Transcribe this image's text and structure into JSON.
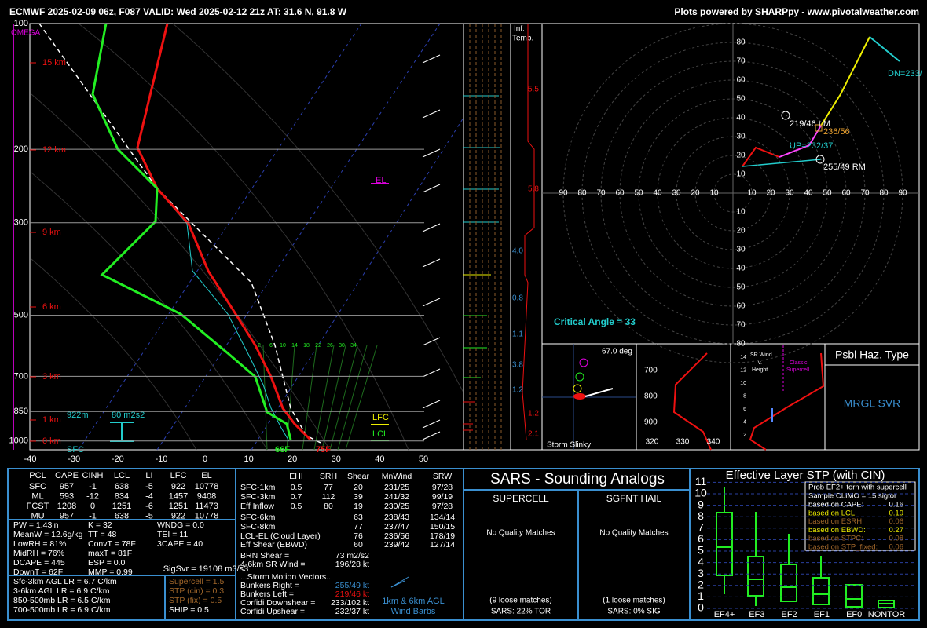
{
  "header": {
    "title": "ECMWF 2025-02-09 06z, F087  VALID: Wed 2025-02-12 21z  AT: 31.6 N, 91.8 W",
    "credit": "Plots powered by SHARPpy - www.pivotalweather.com"
  },
  "skewt": {
    "omega": "OMEGA",
    "pressures": [
      100,
      200,
      300,
      500,
      700,
      850,
      1000
    ],
    "heights": [
      "15 km",
      "12 km",
      "9 km",
      "6 km",
      "3 km",
      "1 km",
      "0 km"
    ],
    "temps": [
      -40,
      -30,
      -20,
      -10,
      0,
      10,
      20,
      30,
      40,
      50
    ],
    "mixing": [
      2,
      6,
      10,
      14,
      18,
      22,
      26,
      30,
      34
    ],
    "el": "EL",
    "lfc": "LFC",
    "lcl": "LCL",
    "sfc_t": "75F",
    "sfc_td": "66F",
    "sfc": "SFC",
    "pbl": "922m",
    "srh": "80 m2s2"
  },
  "theta": {
    "title1": "Inf.",
    "title2": "Temp.",
    "values": [
      "5.5",
      "5.8",
      "4.0",
      "0.8",
      "1.1",
      "3.8",
      "1.2",
      "1.2",
      "2.1"
    ]
  },
  "hodograph": {
    "up_labels": [
      80,
      70,
      60,
      50,
      40,
      30,
      20,
      10
    ],
    "left_labels": [
      90,
      80,
      70,
      60,
      50,
      40,
      30,
      20,
      10
    ],
    "right_labels": [
      10,
      20,
      30,
      40,
      50,
      60,
      70,
      80,
      90
    ],
    "down_labels": [
      10,
      20,
      30,
      40,
      50,
      60,
      70,
      80
    ],
    "dn": "DN=233/",
    "lm": "219/46 LM",
    "mean": "236/56",
    "up": "UP=232/37",
    "rm": "255/49 RM",
    "critical": "Critical Angle = 33"
  },
  "slinky": {
    "deg": "67.0 deg",
    "title": "Storm Slinky"
  },
  "thetae": {
    "pressures": [
      700,
      800,
      900
    ],
    "values": [
      320,
      330,
      340
    ]
  },
  "srwind": {
    "ticks": [
      2,
      4,
      6,
      8,
      10,
      12,
      14
    ],
    "title1": "SR Wind",
    "title2": "v.",
    "title3": "Height",
    "classic1": "Classic",
    "classic2": "Supercell"
  },
  "hazard": {
    "title": "Psbl Haz. Type",
    "value": "MRGL SVR"
  },
  "thermo": {
    "header": [
      "PCL",
      "CAPE",
      "CINH",
      "LCL",
      "LI",
      "LFC",
      "EL"
    ],
    "rows": [
      [
        "SFC",
        957,
        -1,
        638,
        -5,
        922,
        10778
      ],
      [
        "ML",
        593,
        -12,
        834,
        -4,
        1457,
        9408
      ],
      [
        "FCST",
        1208,
        0,
        1251,
        -6,
        1251,
        11473
      ],
      [
        "MU",
        957,
        -1,
        638,
        -5,
        922,
        10778
      ]
    ]
  },
  "indices": {
    "col1": [
      "PW = 1.43in",
      "MeanW = 12.6g/kg",
      "LowRH = 81%",
      "MidRH = 76%",
      "DCAPE = 445",
      "DownT = 62F"
    ],
    "col2": [
      "K = 32",
      "TT = 48",
      "ConvT = 78F",
      "maxT = 81F",
      "ESP = 0.0",
      "MMP = 0.99"
    ],
    "col3": [
      "WNDG = 0.0",
      "TEI = 11",
      "3CAPE = 40"
    ],
    "sigsvr": "SigSvr = 19108 m3/s3"
  },
  "lapse": [
    "Sfc-3km AGL LR = 6.7 C/km",
    "3-6km AGL LR = 6.9 C/km",
    "850-500mb LR = 6.5 C/km",
    "700-500mb LR = 6.9 C/km"
  ],
  "composite": [
    "Supercell = 1.5",
    "STP (cin) = 0.3",
    "STP (fix) = 0.5",
    "SHIP = 0.5"
  ],
  "kinematic": {
    "header": [
      "EHI",
      "SRH",
      "Shear",
      "MnWind",
      "SRW"
    ],
    "rows": [
      [
        "SFC-1km",
        "0.5",
        "77",
        "20",
        "231/25",
        "97/28"
      ],
      [
        "SFC-3km",
        "0.7",
        "112",
        "39",
        "241/32",
        "99/19"
      ],
      [
        "Eff Inflow",
        "0.5",
        "80",
        "19",
        "230/25",
        "97/28"
      ],
      [
        "SFC-6km",
        "",
        "",
        "63",
        "238/43",
        "134/14"
      ],
      [
        "SFC-8km",
        "",
        "",
        "77",
        "237/47",
        "150/15"
      ],
      [
        "LCL-EL (Cloud Layer)",
        "",
        "",
        "76",
        "236/56",
        "178/19"
      ],
      [
        "Eff Shear (EBWD)",
        "",
        "",
        "60",
        "239/42",
        "127/14"
      ]
    ],
    "extra": [
      [
        "BRN Shear =",
        "73 m2/s2"
      ],
      [
        "4-6km SR Wind =",
        "196/28 kt"
      ],
      [
        "...Storm Motion Vectors...",
        ""
      ],
      [
        "Bunkers Right =",
        "255/49 kt"
      ],
      [
        "Bunkers Left =",
        "219/46 kt"
      ],
      [
        "Corfidi Downshear =",
        "233/102 kt"
      ],
      [
        "Corfidi Upshear =",
        "232/37 kt"
      ]
    ],
    "barbs1": "1km & 6km AGL",
    "barbs2": "Wind Barbs"
  },
  "sars": {
    "title": "SARS - Sounding Analogs",
    "supercell": "SUPERCELL",
    "hail": "SGFNT HAIL",
    "nomatch1": "No Quality Matches",
    "nomatch2": "No Quality Matches",
    "loose1": "(9 loose matches)",
    "loose2": "(1 loose matches)",
    "sars1": "SARS: 22% TOR",
    "sars2": "SARS: 0% SIG"
  },
  "stp": {
    "title": "Effective Layer STP (with CIN)",
    "yticks": [
      0,
      1,
      2,
      3,
      4,
      5,
      6,
      7,
      8,
      9,
      10,
      11
    ],
    "categories": [
      "EF4+",
      "EF3",
      "EF2",
      "EF1",
      "EF0",
      "NONTOR"
    ],
    "legend": {
      "title1": "Prob EF2+ torn with supercell",
      "title2": "Sample CLIMO = 15 sigtor",
      "rows": [
        [
          "based on CAPE:",
          "0.16"
        ],
        [
          "based on LCL:",
          "0.19"
        ],
        [
          "based on ESRH:",
          "0.06"
        ],
        [
          "based on EBWD:",
          "0.27"
        ],
        [
          "based on STPC:",
          "0.08"
        ],
        [
          "based on STP_fixed:",
          "0.06"
        ]
      ]
    }
  }
}
